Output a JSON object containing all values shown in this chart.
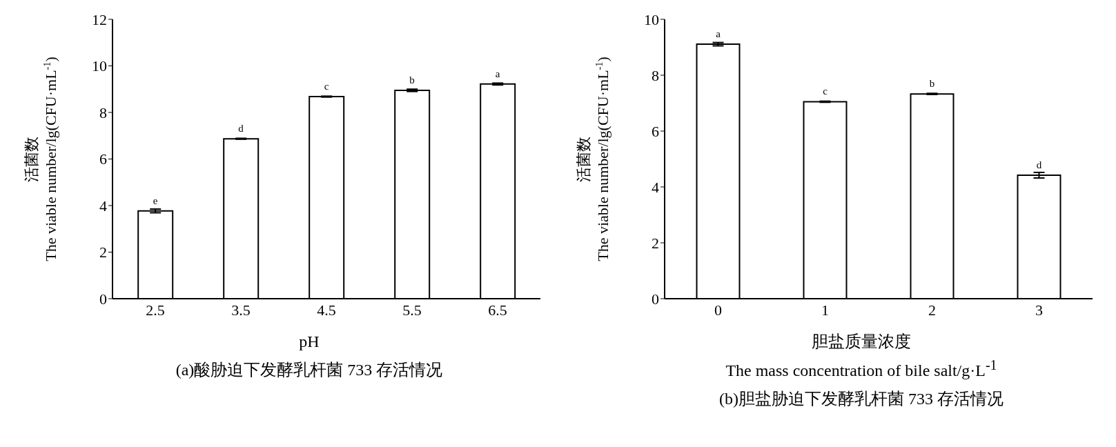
{
  "chart_data": [
    {
      "type": "bar",
      "title": "(a)酸胁迫下发酵乳杆菌 733 存活情况",
      "xlabel": "pH",
      "ylabel": "活菌数\nThe viable number/lg(CFU·mL$^{-1}$)",
      "categories": [
        "2.5",
        "3.5",
        "4.5",
        "5.5",
        "6.5"
      ],
      "values": [
        3.77,
        6.87,
        8.68,
        8.95,
        9.22
      ],
      "errors": [
        0.08,
        0.02,
        0.02,
        0.05,
        0.04
      ],
      "color": "#ffffff",
      "ylim": [
        0,
        12
      ],
      "yticks": [
        0,
        2,
        4,
        6,
        8,
        10,
        12
      ],
      "annotations": [
        {
          "text": "e",
          "x": "2.5",
          "y": 3.77
        },
        {
          "text": "d",
          "x": "3.5",
          "y": 6.87
        },
        {
          "text": "c",
          "x": "4.5",
          "y": 8.68
        },
        {
          "text": "b",
          "x": "5.5",
          "y": 8.95
        },
        {
          "text": "a",
          "x": "6.5",
          "y": 9.22
        }
      ]
    },
    {
      "type": "bar",
      "title": "(b)胆盐胁迫下发酵乳杆菌 733 存活情况",
      "xlabel": "胆盐质量浓度\nThe mass concentration of bile salt/g·L$^{-1}$",
      "ylabel": "活菌数\nThe viable number/lg(CFU·mL$^{-1}$)",
      "categories": [
        "0",
        "1",
        "2",
        "3"
      ],
      "values": [
        9.11,
        7.05,
        7.33,
        4.42
      ],
      "errors": [
        0.06,
        0.02,
        0.02,
        0.1
      ],
      "color": "#ffffff",
      "ylim": [
        0,
        10
      ],
      "yticks": [
        0,
        2,
        4,
        6,
        8,
        10
      ],
      "annotations": [
        {
          "text": "a",
          "x": "0",
          "y": 9.11
        },
        {
          "text": "c",
          "x": "1",
          "y": 7.05
        },
        {
          "text": "b",
          "x": "2",
          "y": 7.33
        },
        {
          "text": "d",
          "x": "3",
          "y": 4.42
        }
      ]
    }
  ]
}
